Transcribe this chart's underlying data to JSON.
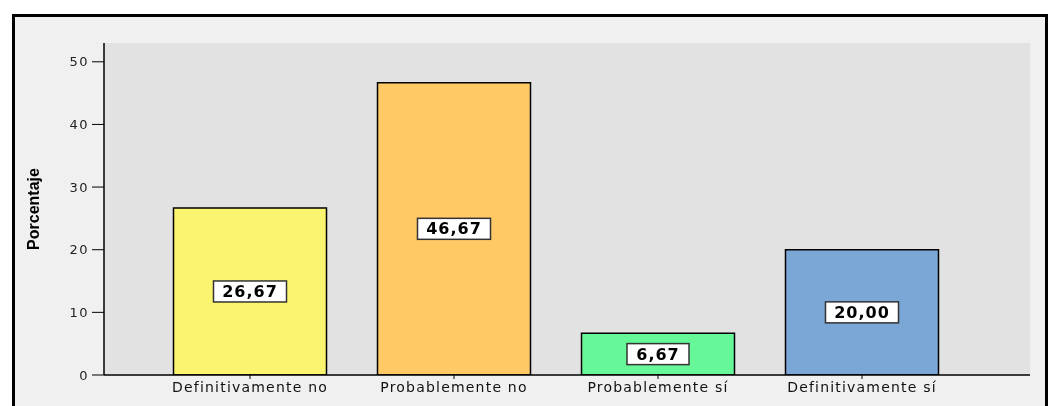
{
  "chart_data": {
    "type": "bar",
    "ylabel": "Porcentaje",
    "categories": [
      "Definitivamente no",
      "Probablemente no",
      "Probablemente sí",
      "Definitivamente sí"
    ],
    "values": [
      26.67,
      46.67,
      6.67,
      20.0
    ],
    "colors": [
      "#fbf46e",
      "#ffca66",
      "#66f799",
      "#7ba7d6"
    ],
    "value_labels": [
      "26,67",
      "46,67",
      "6,67",
      "20,00"
    ],
    "ylim": [
      0,
      53
    ],
    "yticks": [
      0,
      10,
      20,
      30,
      40,
      50
    ]
  }
}
